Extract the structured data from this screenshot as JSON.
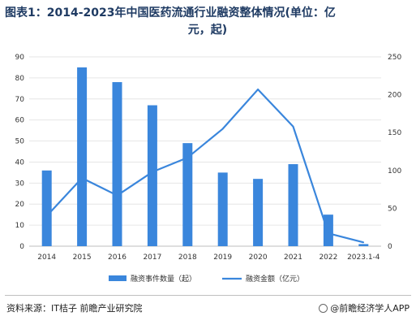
{
  "title_line1": "图表1：2014-2023年中国医药流通行业融资整体情况(单位：亿",
  "title_line2": "元，起)",
  "source": "资料来源：IT桔子 前瞻产业研究院",
  "brand": "@前瞻经济学人APP",
  "colors": {
    "bar": "#3a86dc",
    "line": "#3a86dc"
  },
  "chart_data": {
    "type": "bar",
    "title": "图表1：2014-2023年中国医药流通行业融资整体情况(单位：亿元，起)",
    "categories": [
      "2014",
      "2015",
      "2016",
      "2017",
      "2018",
      "2019",
      "2020",
      "2021",
      "2022",
      "2023.1-4"
    ],
    "series": [
      {
        "name": "融资事件数量（起）",
        "type": "bar",
        "axis": "left",
        "values": [
          36,
          85,
          78,
          67,
          49,
          35,
          32,
          39,
          15,
          1
        ]
      },
      {
        "name": "融资金额（亿元）",
        "type": "line",
        "axis": "right",
        "values": [
          40,
          90,
          67,
          98,
          117,
          155,
          207,
          158,
          17,
          5
        ]
      }
    ],
    "y_left": {
      "min": 0,
      "max": 90,
      "ticks": [
        0,
        10,
        20,
        30,
        40,
        50,
        60,
        70,
        80,
        90
      ]
    },
    "y_right": {
      "min": 0,
      "max": 250,
      "ticks": [
        0,
        50,
        100,
        150,
        200,
        250
      ]
    },
    "grid": true,
    "legend_position": "bottom"
  }
}
